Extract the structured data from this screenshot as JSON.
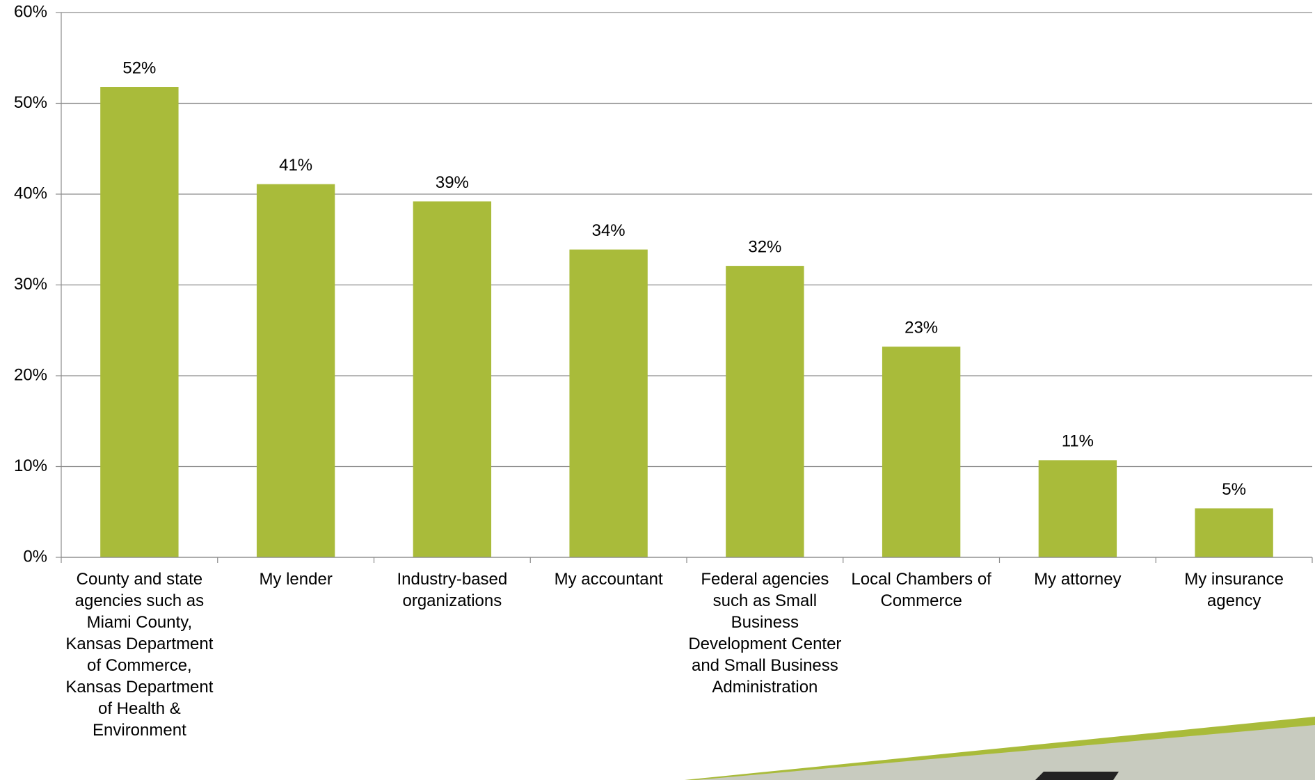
{
  "chart_data": {
    "type": "bar",
    "categories": [
      "County and state agencies such as Miami County, Kansas Department of Commerce, Kansas Department of Health & Environment",
      "My lender",
      "Industry-based organizations",
      "My accountant",
      "Federal agencies such as Small Business Development Center and Small Business Administration",
      "Local Chambers of Commerce",
      "My attorney",
      "My insurance agency"
    ],
    "values": [
      51.8,
      41.1,
      39.2,
      33.9,
      32.1,
      23.2,
      10.7,
      5.4
    ],
    "value_labels": [
      "52%",
      "41%",
      "39%",
      "34%",
      "32%",
      "23%",
      "11%",
      "5%"
    ],
    "color": "#a9bb3a",
    "ylim": [
      0,
      60
    ],
    "yticks": [
      {
        "value": 0,
        "label": "0%"
      },
      {
        "value": 10,
        "label": "10%"
      },
      {
        "value": 20,
        "label": "20%"
      },
      {
        "value": 30,
        "label": "30%"
      },
      {
        "value": 40,
        "label": "40%"
      },
      {
        "value": 50,
        "label": "50%"
      },
      {
        "value": 60,
        "label": "60%"
      }
    ],
    "grid": true
  }
}
